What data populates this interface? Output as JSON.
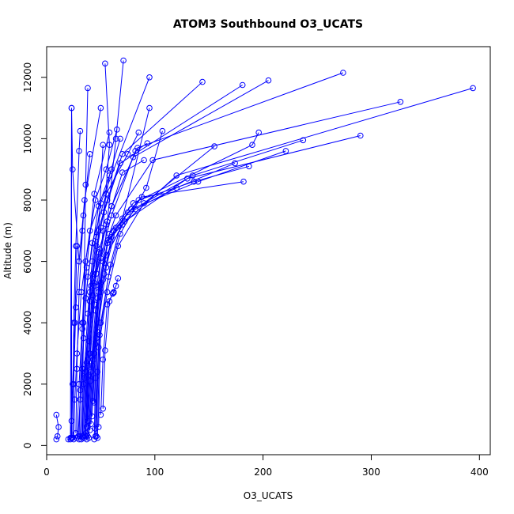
{
  "chart_data": {
    "type": "line",
    "title": "ATOM3 Southbound O3_UCATS",
    "xlabel": "O3_UCATS",
    "ylabel": "Altitude (m)",
    "xlim": [
      0,
      410
    ],
    "ylim": [
      -300,
      13000
    ],
    "xticks": [
      0,
      100,
      200,
      300,
      400
    ],
    "yticks": [
      0,
      2000,
      4000,
      6000,
      8000,
      10000,
      12000
    ],
    "grid": false,
    "colors": {
      "series": "#0000ff"
    },
    "series": [
      {
        "x": [
          9,
          10,
          11,
          9
        ],
        "y": [
          200,
          300,
          600,
          1000
        ]
      },
      {
        "x": [
          22,
          23,
          24,
          26,
          28
        ],
        "y": [
          200,
          800,
          2000,
          4000,
          6500
        ]
      },
      {
        "x": [
          23,
          23,
          24,
          30,
          35,
          50
        ],
        "y": [
          250,
          11000,
          9000,
          6000,
          8000,
          11000
        ]
      },
      {
        "x": [
          24,
          25,
          27,
          30,
          33
        ],
        "y": [
          250,
          2000,
          4500,
          6000,
          7000
        ]
      },
      {
        "x": [
          25,
          26,
          28,
          32,
          40,
          60
        ],
        "y": [
          200,
          1500,
          3000,
          5000,
          7000,
          9000
        ]
      },
      {
        "x": [
          27,
          28,
          30,
          34,
          40
        ],
        "y": [
          400,
          2500,
          5000,
          7500,
          9500
        ]
      },
      {
        "x": [
          28,
          30,
          33,
          36,
          45,
          55,
          65
        ],
        "y": [
          250,
          2000,
          4000,
          6000,
          8000,
          9000,
          10300
        ]
      },
      {
        "x": [
          29,
          31,
          34,
          38,
          48
        ],
        "y": [
          300,
          1500,
          3500,
          5500,
          7800
        ]
      },
      {
        "x": [
          30,
          31,
          33,
          37,
          44,
          58
        ],
        "y": [
          200,
          1800,
          3800,
          5800,
          8200,
          10200
        ]
      },
      {
        "x": [
          31,
          33,
          36,
          42,
          55,
          75,
          85
        ],
        "y": [
          300,
          2500,
          4800,
          6600,
          8200,
          9500,
          10200
        ]
      },
      {
        "x": [
          32,
          34,
          38,
          42,
          50,
          95
        ],
        "y": [
          200,
          2000,
          4300,
          6000,
          7900,
          12000
        ]
      },
      {
        "x": [
          33,
          35,
          40,
          48,
          60,
          80,
          205
        ],
        "y": [
          250,
          2200,
          4700,
          6300,
          7800,
          9400,
          11900
        ]
      },
      {
        "x": [
          34,
          36,
          40,
          46,
          56,
          70,
          144
        ],
        "y": [
          300,
          2400,
          5000,
          6800,
          8000,
          9500,
          11850
        ]
      },
      {
        "x": [
          35,
          37,
          41,
          46,
          53,
          68,
          181
        ],
        "y": [
          250,
          2700,
          5200,
          6500,
          7600,
          9200,
          11750
        ]
      },
      {
        "x": [
          36,
          38,
          42,
          49,
          60,
          84,
          274
        ],
        "y": [
          300,
          2600,
          4900,
          6400,
          7800,
          9700,
          12150
        ]
      },
      {
        "x": [
          37,
          39,
          44,
          50,
          64,
          98,
          327
        ],
        "y": [
          200,
          2300,
          4600,
          6100,
          7500,
          9300,
          11200
        ]
      },
      {
        "x": [
          38,
          40,
          45,
          52,
          70,
          120,
          394
        ],
        "y": [
          300,
          2100,
          4400,
          6000,
          7200,
          8800,
          11650
        ]
      },
      {
        "x": [
          39,
          41,
          47,
          55,
          72,
          130,
          290
        ],
        "y": [
          250,
          2400,
          4800,
          6200,
          7300,
          8700,
          10100
        ]
      },
      {
        "x": [
          40,
          42,
          48,
          56,
          75,
          135,
          237
        ],
        "y": [
          500,
          2600,
          5000,
          6600,
          7600,
          8800,
          9950
        ]
      },
      {
        "x": [
          41,
          43,
          49,
          57,
          78,
          140,
          221
        ],
        "y": [
          700,
          2800,
          5200,
          6700,
          7700,
          8600,
          9600
        ]
      },
      {
        "x": [
          42,
          44,
          50,
          58,
          80,
          190,
          196
        ],
        "y": [
          950,
          3000,
          5300,
          6900,
          7900,
          9800,
          10200
        ]
      },
      {
        "x": [
          43,
          45,
          52,
          60,
          82,
          120,
          174
        ],
        "y": [
          1450,
          3300,
          5400,
          6800,
          7700,
          8400,
          9200
        ]
      },
      {
        "x": [
          44,
          46,
          53,
          62,
          85,
          136,
          187
        ],
        "y": [
          1400,
          3500,
          5600,
          7000,
          8000,
          8600,
          9100
        ]
      },
      {
        "x": [
          45,
          47,
          55,
          64,
          88,
          182
        ],
        "y": [
          550,
          3700,
          5800,
          7100,
          8100,
          8600
        ]
      },
      {
        "x": [
          46,
          48,
          56,
          66,
          90,
          155
        ],
        "y": [
          300,
          3200,
          5000,
          6500,
          7900,
          9750
        ]
      },
      {
        "x": [
          47,
          49,
          57,
          68,
          92,
          107
        ],
        "y": [
          250,
          3600,
          5500,
          6900,
          8400,
          10250
        ]
      },
      {
        "x": [
          48,
          50,
          59,
          70,
          95
        ],
        "y": [
          600,
          4000,
          5900,
          7400,
          11000
        ]
      },
      {
        "x": [
          44,
          45,
          47,
          52,
          58,
          54
        ],
        "y": [
          200,
          2200,
          4800,
          7000,
          9800,
          12450
        ]
      },
      {
        "x": [
          45,
          47,
          50,
          56,
          64,
          71
        ],
        "y": [
          300,
          2400,
          5000,
          7300,
          10000,
          12550
        ]
      },
      {
        "x": [
          33,
          34,
          36,
          38
        ],
        "y": [
          300,
          4000,
          8500,
          11650
        ]
      },
      {
        "x": [
          24,
          25,
          27,
          30,
          31
        ],
        "y": [
          250,
          4000,
          6500,
          9600,
          10250
        ]
      },
      {
        "x": [
          50,
          52,
          56,
          62,
          64,
          66
        ],
        "y": [
          1000,
          2800,
          4600,
          5000,
          5200,
          5450
        ]
      },
      {
        "x": [
          52,
          54,
          58,
          61,
          62
        ],
        "y": [
          1200,
          3100,
          4700,
          4950,
          4980
        ]
      },
      {
        "x": [
          38,
          40,
          44,
          48,
          52
        ],
        "y": [
          800,
          3000,
          5200,
          7000,
          9800
        ]
      },
      {
        "x": [
          20,
          22,
          23
        ],
        "y": [
          200,
          250,
          11000
        ]
      },
      {
        "x": [
          36,
          39,
          46,
          60,
          82,
          93
        ],
        "y": [
          400,
          3000,
          5600,
          7500,
          9600,
          9850
        ]
      },
      {
        "x": [
          35,
          38,
          44,
          55,
          70,
          90
        ],
        "y": [
          350,
          2800,
          5300,
          7200,
          8900,
          9300
        ]
      },
      {
        "x": [
          37,
          39,
          43,
          50,
          58,
          68
        ],
        "y": [
          600,
          3400,
          5600,
          7100,
          8800,
          10000
        ]
      }
    ]
  }
}
